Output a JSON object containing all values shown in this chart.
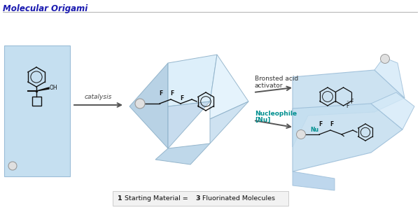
{
  "title": "Molecular Origami",
  "title_color": "#1a1ab0",
  "title_fontsize": 8.5,
  "bg_color": "#ffffff",
  "lb": "#c5dff0",
  "mb": "#9bbdd8",
  "lb2": "#d5eaf8",
  "lb3": "#b0cfea",
  "sep_color": "#b0b0b0",
  "catalysis_label": "catalysis",
  "bronsted_label": "Bronsted acid\nactivator",
  "bronsted_color": "#333333",
  "nucleophile_label": "Nucleophile",
  "nu_sub_label": "[Nu]",
  "nucleophile_color": "#009090",
  "nu_label": "Nu",
  "nu_color": "#009090",
  "box_bg": "#f2f2f2",
  "box_border": "#cccccc",
  "arrow_color": "#555555",
  "black": "#111111",
  "gray_bead": "#e0e0e0",
  "gray_bead_edge": "#999999"
}
